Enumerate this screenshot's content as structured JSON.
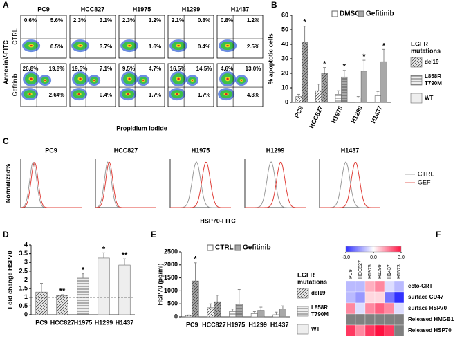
{
  "flow": {
    "letter": "A",
    "cell_lines": [
      "PC9",
      "HCC827",
      "H1975",
      "H1299",
      "H1437"
    ],
    "row_labels": [
      "CTRL",
      "Gefitinib"
    ],
    "y_label": "AnnexinV-FITC",
    "x_label": "Propidium iodide",
    "quadrants": [
      [
        [
          "0.6%",
          "5.6%",
          "0.5%"
        ],
        [
          "2.3%",
          "3.1%",
          "3.7%"
        ],
        [
          "2.3%",
          "1.2%",
          "1.6%"
        ],
        [
          "2.1%",
          "0.8%",
          "0.4%"
        ],
        [
          "0.8%",
          "1.2%",
          "2.5%"
        ]
      ],
      [
        [
          "26.8%",
          "19.8%",
          "2.64%"
        ],
        [
          "19.5%",
          "7.1%",
          "0.4%"
        ],
        [
          "9.5%",
          "4.7%",
          "1.7%"
        ],
        [
          "16.5%",
          "14.5%",
          "1.7%"
        ],
        [
          "4.6%",
          "13.0%",
          "4.3%"
        ]
      ]
    ]
  },
  "histograms": {
    "letter": "C",
    "cell_lines": [
      "PC9",
      "HCC827",
      "H1975",
      "H1299",
      "H1437"
    ],
    "y_label": "Normalized%",
    "x_label": "HSP70-FITC",
    "legend": [
      {
        "name": "CTRL",
        "color": "#9a9a9a"
      },
      {
        "name": "GEF",
        "color": "#e0403a"
      }
    ]
  },
  "chart_data": [
    {
      "type": "bar",
      "letter": "B",
      "y_label": "% apoptotic cells",
      "categories": [
        "PC9",
        "HCC827",
        "H1975",
        "H1299",
        "H1437"
      ],
      "series": [
        {
          "name": "DMSO",
          "color": "#ffffff",
          "values": [
            4,
            8,
            5.5,
            3,
            4.5
          ],
          "errors": [
            1.5,
            4.5,
            2.5,
            1,
            3
          ]
        },
        {
          "name": "Gefitinib",
          "color": "#a8a8a8",
          "values": [
            41.5,
            20,
            17.5,
            21.5,
            28
          ],
          "errors": [
            11,
            4,
            4.5,
            7.5,
            8.5
          ],
          "annotations": [
            "*",
            "*",
            "*",
            "*",
            "*"
          ]
        }
      ],
      "patterns": [
        "diag",
        "diag",
        "horiz",
        "none",
        "none"
      ],
      "ylim": [
        0,
        60
      ],
      "yticks": [
        0,
        10,
        20,
        30,
        40,
        50,
        60
      ],
      "mutation_legend": {
        "title": [
          "EGFR",
          "mutations"
        ],
        "items": [
          {
            "lines": [
              "del19"
            ],
            "pattern": "diag"
          },
          {
            "lines": [
              "L858R",
              "T790M"
            ],
            "pattern": "horiz"
          },
          {
            "lines": [
              "WT"
            ],
            "pattern": "none"
          }
        ],
        "color": "#eeeeee"
      }
    },
    {
      "type": "bar",
      "letter": "D",
      "y_label": "Fold change HSP70",
      "categories": [
        "PC9",
        "HCC827",
        "H1975",
        "H1299",
        "H1437"
      ],
      "values": [
        1.3,
        1.1,
        2.1,
        3.25,
        2.85
      ],
      "errors": [
        0.5,
        0.05,
        0.25,
        0.3,
        0.35
      ],
      "annotations": [
        null,
        "**",
        "*",
        "*",
        "**"
      ],
      "color": "#eeeeee",
      "patterns": [
        "diag",
        "diag",
        "horiz",
        "none",
        "none"
      ],
      "reference_line": 1,
      "ylim": [
        0,
        4
      ],
      "yticks": [
        0,
        0.5,
        1,
        1.5,
        2,
        2.5,
        3,
        3.5,
        4
      ]
    },
    {
      "type": "bar",
      "letter": "E",
      "y_label": "HSP70 (pg/ml)",
      "categories": [
        "PC9",
        "HCC827",
        "H1975",
        "H1299",
        "H1437"
      ],
      "series": [
        {
          "name": "CTRL",
          "color": "#ffffff",
          "values": [
            50,
            350,
            200,
            120,
            80
          ],
          "errors": [
            20,
            150,
            100,
            80,
            100
          ],
          "annotations": [
            null,
            null,
            null,
            null,
            null
          ]
        },
        {
          "name": "Gefitinib",
          "color": "#a8a8a8",
          "values": [
            1380,
            580,
            490,
            250,
            300
          ],
          "errors": [
            700,
            250,
            560,
            120,
            120
          ],
          "annotations": [
            "*",
            null,
            null,
            null,
            null
          ]
        }
      ],
      "patterns": [
        "diag",
        "diag",
        "horiz",
        "none",
        "none"
      ],
      "ylim": [
        0,
        2500
      ],
      "yticks": [
        0,
        500,
        1000,
        1500,
        2000,
        2500
      ],
      "mutation_legend": {
        "title": [
          "EGFR",
          "mutations"
        ],
        "items": [
          {
            "lines": [
              "del19"
            ],
            "pattern": "diag"
          },
          {
            "lines": [
              "L858R",
              "T790M"
            ],
            "pattern": "horiz"
          },
          {
            "lines": [
              "WT"
            ],
            "pattern": "none"
          }
        ],
        "color": "#eeeeee"
      }
    },
    {
      "type": "heatmap",
      "letter": "F",
      "columns": [
        "PC9",
        "HCC827",
        "H1975",
        "H1299",
        "H1437",
        "H1573"
      ],
      "rows": [
        "ecto-CRT",
        "surface CD47",
        "surface HSP70",
        "Released HMGB1",
        "Released HSP70"
      ],
      "values": [
        [
          -1,
          -1,
          1,
          1.5,
          -0.5,
          -1
        ],
        [
          -1,
          -1.5,
          0.5,
          0.5,
          -2,
          -3
        ],
        [
          1.5,
          -0.5,
          1.5,
          2,
          1.5,
          -0.5
        ],
        [
          null,
          null,
          null,
          null,
          null,
          null
        ],
        [
          2.5,
          1.5,
          2.5,
          3,
          2.5,
          null
        ]
      ],
      "colors": [
        "#3030ff",
        "#ffffff",
        "#ff1040"
      ],
      "null_color": "#808080",
      "colorbar": {
        "lim": [
          -3,
          3
        ],
        "ticks": [
          {
            "value": -3,
            "label": "-3.0"
          },
          {
            "value": 0,
            "label": "0.0"
          },
          {
            "value": 3,
            "label": "3.0"
          }
        ]
      }
    }
  ]
}
